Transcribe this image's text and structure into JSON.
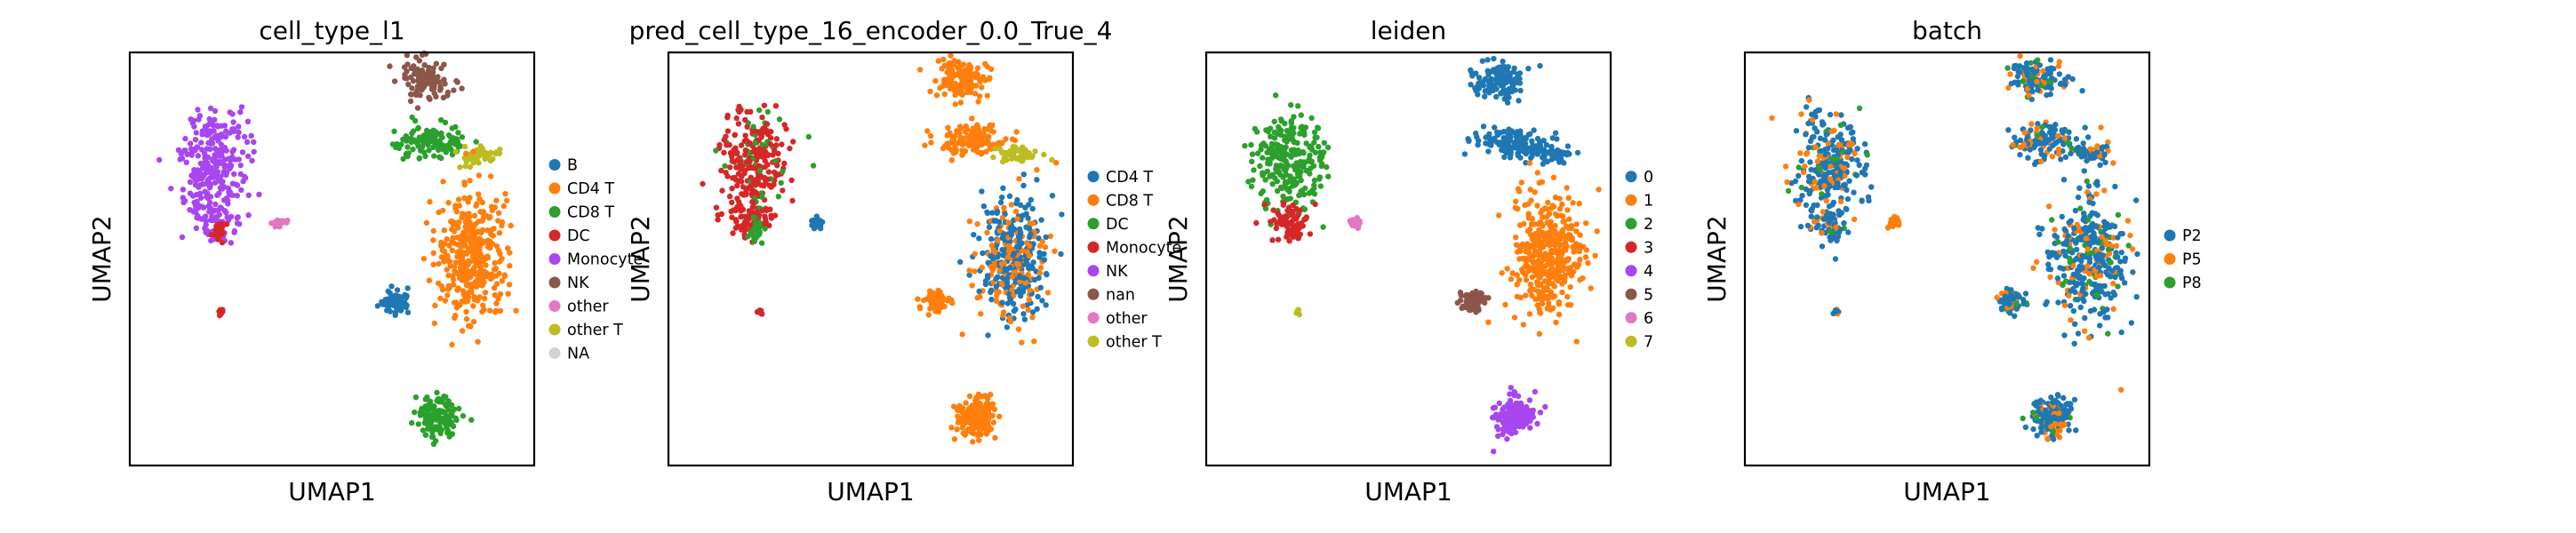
{
  "chart_data": [
    {
      "type": "scatter",
      "title": "cell_type_l1",
      "xlabel": "UMAP1",
      "ylabel": "UMAP2",
      "grid": false,
      "legend_position": "right",
      "series": [
        {
          "name": "B",
          "color": "#1f77b4"
        },
        {
          "name": "CD4 T",
          "color": "#ff7f0e"
        },
        {
          "name": "CD8 T",
          "color": "#2ca02c"
        },
        {
          "name": "DC",
          "color": "#d62728"
        },
        {
          "name": "Monocyte",
          "color": "#a846f0"
        },
        {
          "name": "NK",
          "color": "#8c564b"
        },
        {
          "name": "other",
          "color": "#e377c2"
        },
        {
          "name": "other T",
          "color": "#bcbd22"
        },
        {
          "name": "NA",
          "color": "#d3d3d3"
        }
      ]
    },
    {
      "type": "scatter",
      "title": "pred_cell_type_16_encoder_0.0_True_4",
      "xlabel": "UMAP1",
      "ylabel": "UMAP2",
      "grid": false,
      "legend_position": "right",
      "series": [
        {
          "name": "CD4 T",
          "color": "#1f77b4"
        },
        {
          "name": "CD8 T",
          "color": "#ff7f0e"
        },
        {
          "name": "DC",
          "color": "#2ca02c"
        },
        {
          "name": "Monocyte",
          "color": "#d62728"
        },
        {
          "name": "NK",
          "color": "#a846f0"
        },
        {
          "name": "nan",
          "color": "#8c564b"
        },
        {
          "name": "other",
          "color": "#e377c2"
        },
        {
          "name": "other T",
          "color": "#bcbd22"
        }
      ]
    },
    {
      "type": "scatter",
      "title": "leiden",
      "xlabel": "UMAP1",
      "ylabel": "UMAP2",
      "grid": false,
      "legend_position": "right",
      "series": [
        {
          "name": "0",
          "color": "#1f77b4"
        },
        {
          "name": "1",
          "color": "#ff7f0e"
        },
        {
          "name": "2",
          "color": "#2ca02c"
        },
        {
          "name": "3",
          "color": "#d62728"
        },
        {
          "name": "4",
          "color": "#a846f0"
        },
        {
          "name": "5",
          "color": "#8c564b"
        },
        {
          "name": "6",
          "color": "#e377c2"
        },
        {
          "name": "7",
          "color": "#bcbd22"
        }
      ]
    },
    {
      "type": "scatter",
      "title": "batch",
      "xlabel": "UMAP1",
      "ylabel": "UMAP2",
      "grid": false,
      "legend_position": "right",
      "series": [
        {
          "name": "P2",
          "color": "#1f77b4"
        },
        {
          "name": "P5",
          "color": "#ff7f0e"
        },
        {
          "name": "P8",
          "color": "#2ca02c"
        }
      ]
    }
  ]
}
